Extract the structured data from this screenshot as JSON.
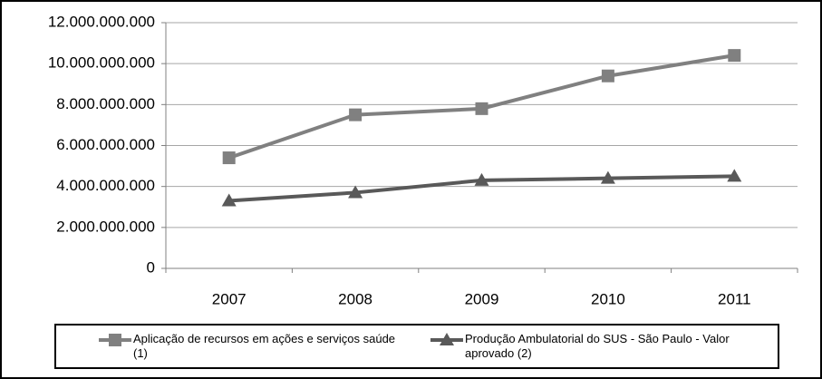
{
  "chart_data": {
    "type": "line",
    "categories": [
      "2007",
      "2008",
      "2009",
      "2010",
      "2011"
    ],
    "series": [
      {
        "name": "Aplicação de recursos em ações e serviços saúde (1)",
        "color": "#808080",
        "marker": "square",
        "values": [
          5400000000,
          7500000000,
          7800000000,
          9400000000,
          10400000000
        ]
      },
      {
        "name": "Produção Ambulatorial do SUS - São Paulo - Valor aprovado (2)",
        "color": "#595959",
        "marker": "triangle",
        "values": [
          3300000000,
          3700000000,
          4300000000,
          4400000000,
          4500000000
        ]
      }
    ],
    "ylim": [
      0,
      12000000000
    ],
    "yticks": [
      0,
      {
        "value": 2000000000,
        "label": "2.000.000.000"
      },
      {
        "value": 4000000000,
        "label": "4.000.000.000"
      },
      {
        "value": 6000000000,
        "label": "6.000.000.000"
      },
      {
        "value": 8000000000,
        "label": "8.000.000.000"
      },
      {
        "value": 10000000000,
        "label": "10.000.000.000"
      },
      {
        "value": 12000000000,
        "label": "12.000.000.000"
      }
    ],
    "grid": true,
    "legend": "bottom"
  }
}
